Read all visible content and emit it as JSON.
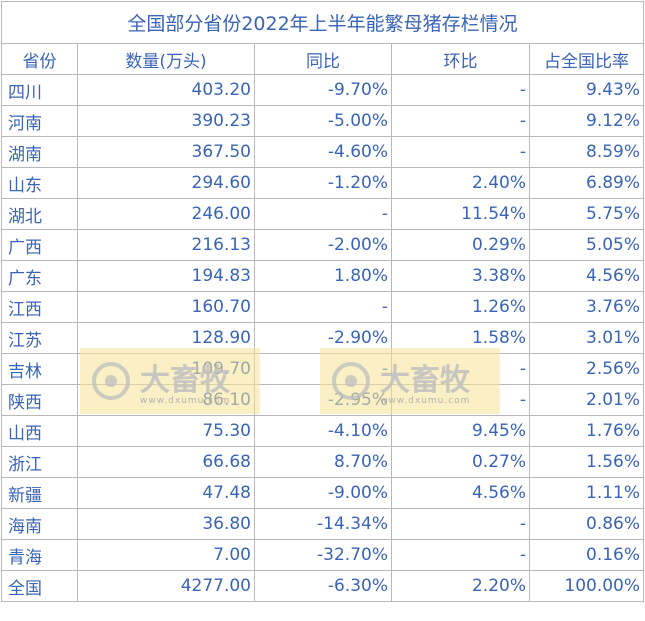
{
  "table": {
    "title": "全国部分省份2022年上半年能繁母猪存栏情况",
    "headers": [
      "省份",
      "数量(万头)",
      "同比",
      "环比",
      "占全国比率"
    ],
    "rows": [
      [
        "四川",
        "403.20",
        "-9.70%",
        "-",
        "9.43%"
      ],
      [
        "河南",
        "390.23",
        "-5.00%",
        "-",
        "9.12%"
      ],
      [
        "湖南",
        "367.50",
        "-4.60%",
        "-",
        "8.59%"
      ],
      [
        "山东",
        "294.60",
        "-1.20%",
        "2.40%",
        "6.89%"
      ],
      [
        "湖北",
        "246.00",
        "-",
        "11.54%",
        "5.75%"
      ],
      [
        "广西",
        "216.13",
        "-2.00%",
        "0.29%",
        "5.05%"
      ],
      [
        "广东",
        "194.83",
        "1.80%",
        "3.38%",
        "4.56%"
      ],
      [
        "江西",
        "160.70",
        "-",
        "1.26%",
        "3.76%"
      ],
      [
        "江苏",
        "128.90",
        "-2.90%",
        "1.58%",
        "3.01%"
      ],
      [
        "吉林",
        "109.70",
        "-",
        "-",
        "2.56%"
      ],
      [
        "陕西",
        "86.10",
        "-2.95%",
        "-",
        "2.01%"
      ],
      [
        "山西",
        "75.30",
        "-4.10%",
        "9.45%",
        "1.76%"
      ],
      [
        "浙江",
        "66.68",
        "8.70%",
        "0.27%",
        "1.56%"
      ],
      [
        "新疆",
        "47.48",
        "-9.00%",
        "4.56%",
        "1.11%"
      ],
      [
        "海南",
        "36.80",
        "-14.34%",
        "-",
        "0.86%"
      ],
      [
        "青海",
        "7.00",
        "-32.70%",
        "-",
        "0.16%"
      ],
      [
        "全国",
        "4277.00",
        "-6.30%",
        "2.20%",
        "100.00%"
      ]
    ]
  },
  "watermark": {
    "brand": "大畜牧",
    "url": "www.dxumu.com"
  },
  "colors": {
    "text": "#3a64b4",
    "grid": "#b8b8b8",
    "watermark_bg": "#f6e296"
  }
}
